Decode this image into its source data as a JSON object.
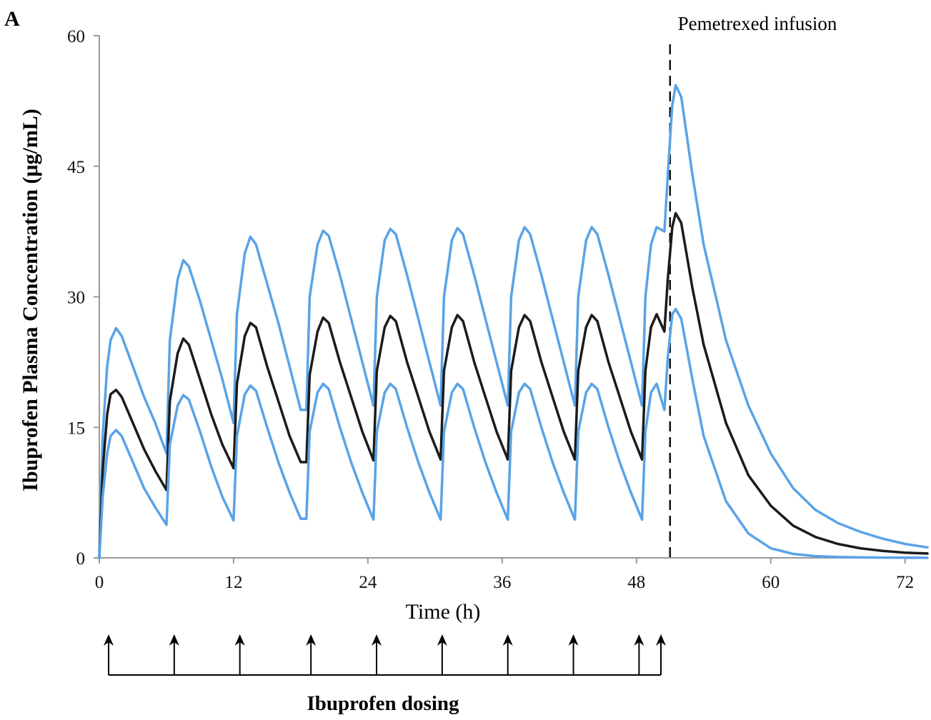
{
  "chart_data": {
    "type": "line",
    "panel_label": "A",
    "xlabel": "Time (h)",
    "ylabel": "Ibuprofen Plasma Concentration (μg/mL)",
    "xlim": [
      0,
      74
    ],
    "ylim": [
      0,
      60
    ],
    "x_ticks": [
      0,
      12,
      24,
      36,
      48,
      60,
      72
    ],
    "y_ticks": [
      0,
      15,
      30,
      45,
      60
    ],
    "grid": false,
    "annotations": [
      {
        "text": "Pemetrexed infusion",
        "x": 51
      }
    ],
    "vline_x": 51,
    "dosing": {
      "label": "Ibuprofen dosing",
      "times": [
        0,
        6,
        12,
        18.5,
        24.5,
        30.5,
        36.5,
        42.5,
        48.5,
        50.5
      ]
    },
    "series": [
      {
        "key": "upper",
        "color": "#5aa3e6",
        "x": [
          0,
          0.3,
          0.7,
          1.0,
          1.5,
          2,
          3,
          4,
          5,
          6,
          6.3,
          7,
          7.5,
          8,
          9,
          10,
          11,
          12,
          12.3,
          13,
          13.5,
          14,
          15,
          16,
          17,
          18,
          18.5,
          18.8,
          19.5,
          20,
          20.5,
          21.5,
          22.5,
          23.5,
          24.5,
          24.8,
          25.5,
          26,
          26.5,
          27.5,
          28.5,
          29.5,
          30.5,
          30.8,
          31.5,
          32,
          32.5,
          33.5,
          34.5,
          35.5,
          36.5,
          36.8,
          37.5,
          38,
          38.5,
          39.5,
          40.5,
          41.5,
          42.5,
          42.8,
          43.5,
          44,
          44.5,
          45.5,
          46.5,
          47.5,
          48.5,
          48.8,
          49.3,
          49.8,
          50.5,
          50.8,
          51.2,
          51.5,
          52,
          53,
          54,
          56,
          58,
          60,
          62,
          64,
          66,
          68,
          70,
          72,
          74
        ],
        "y": [
          0,
          14,
          22,
          25,
          26.4,
          25.5,
          22,
          18.5,
          15.5,
          12,
          25,
          32,
          34.2,
          33.5,
          29.5,
          25,
          20.5,
          15.5,
          28,
          35,
          36.9,
          36,
          31.5,
          27,
          22,
          17,
          17,
          30,
          36,
          37.6,
          37,
          32.5,
          27.5,
          22.5,
          17.5,
          30,
          36.5,
          37.8,
          37.2,
          32.5,
          27.5,
          22.5,
          17.5,
          30,
          36.5,
          37.9,
          37.2,
          32.5,
          27.5,
          22.5,
          17.5,
          30,
          36.5,
          38,
          37.2,
          32.5,
          27.5,
          22.5,
          17.5,
          30,
          36.5,
          38,
          37.2,
          32.5,
          27.5,
          22.5,
          17.5,
          30,
          36,
          38,
          37.5,
          44,
          52,
          54.3,
          53,
          44,
          36,
          25,
          17.5,
          12,
          8,
          5.5,
          4,
          3,
          2.2,
          1.6,
          1.2
        ]
      },
      {
        "key": "median",
        "color": "#1b1b1b",
        "x": [
          0,
          0.3,
          0.7,
          1.0,
          1.5,
          2,
          3,
          4,
          5,
          6,
          6.3,
          7,
          7.5,
          8,
          9,
          10,
          11,
          12,
          12.3,
          13,
          13.5,
          14,
          15,
          16,
          17,
          18,
          18.5,
          18.8,
          19.5,
          20,
          20.5,
          21.5,
          22.5,
          23.5,
          24.5,
          24.8,
          25.5,
          26,
          26.5,
          27.5,
          28.5,
          29.5,
          30.5,
          30.8,
          31.5,
          32,
          32.5,
          33.5,
          34.5,
          35.5,
          36.5,
          36.8,
          37.5,
          38,
          38.5,
          39.5,
          40.5,
          41.5,
          42.5,
          42.8,
          43.5,
          44,
          44.5,
          45.5,
          46.5,
          47.5,
          48.5,
          48.8,
          49.3,
          49.8,
          50.5,
          50.8,
          51.2,
          51.5,
          52,
          53,
          54,
          56,
          58,
          60,
          62,
          64,
          66,
          68,
          70,
          72,
          74
        ],
        "y": [
          0,
          10,
          16.5,
          18.8,
          19.3,
          18.5,
          15.5,
          12.5,
          10,
          7.8,
          18,
          23.5,
          25.2,
          24.5,
          20.5,
          16.5,
          13,
          10.3,
          20,
          25.5,
          27,
          26.5,
          22,
          18,
          14,
          11,
          11,
          21,
          26,
          27.6,
          27,
          22.5,
          18.5,
          14.5,
          11.2,
          21.5,
          26.5,
          27.8,
          27.2,
          22.5,
          18.5,
          14.5,
          11.3,
          21.5,
          26.5,
          27.9,
          27.2,
          22.5,
          18.5,
          14.5,
          11.3,
          21.5,
          26.5,
          27.9,
          27.2,
          22.5,
          18.5,
          14.5,
          11.3,
          21.5,
          26.5,
          27.9,
          27.2,
          22.5,
          18.5,
          14.5,
          11.3,
          21.5,
          26.5,
          28,
          26,
          32,
          38,
          39.6,
          38.5,
          31,
          24.5,
          15.5,
          9.5,
          6,
          3.7,
          2.4,
          1.6,
          1.1,
          0.8,
          0.6,
          0.5
        ]
      },
      {
        "key": "lower",
        "color": "#5aa3e6",
        "x": [
          0,
          0.3,
          0.7,
          1.0,
          1.5,
          2,
          3,
          4,
          5,
          6,
          6.3,
          7,
          7.5,
          8,
          9,
          10,
          11,
          12,
          12.3,
          13,
          13.5,
          14,
          15,
          16,
          17,
          18,
          18.5,
          18.8,
          19.5,
          20,
          20.5,
          21.5,
          22.5,
          23.5,
          24.5,
          24.8,
          25.5,
          26,
          26.5,
          27.5,
          28.5,
          29.5,
          30.5,
          30.8,
          31.5,
          32,
          32.5,
          33.5,
          34.5,
          35.5,
          36.5,
          36.8,
          37.5,
          38,
          38.5,
          39.5,
          40.5,
          41.5,
          42.5,
          42.8,
          43.5,
          44,
          44.5,
          45.5,
          46.5,
          47.5,
          48.5,
          48.8,
          49.3,
          49.8,
          50.5,
          50.8,
          51.2,
          51.5,
          52,
          53,
          54,
          56,
          58,
          60,
          62,
          64,
          66,
          68,
          70,
          72,
          74
        ],
        "y": [
          0,
          7,
          12,
          14,
          14.7,
          14,
          11,
          8,
          5.8,
          3.8,
          13,
          17.5,
          18.7,
          18.2,
          14.5,
          10.5,
          7,
          4.3,
          14,
          18.8,
          19.8,
          19.2,
          15,
          11,
          7.5,
          4.5,
          4.5,
          14.5,
          19,
          20,
          19.4,
          15,
          11,
          7.5,
          4.4,
          14.5,
          19,
          20,
          19.4,
          15,
          11,
          7.5,
          4.4,
          14.5,
          19,
          20,
          19.4,
          15,
          11,
          7.5,
          4.4,
          14.5,
          19,
          20,
          19.4,
          15,
          11,
          7.5,
          4.4,
          14.5,
          19,
          20,
          19.4,
          15,
          11,
          7.5,
          4.4,
          14.5,
          19,
          20,
          17,
          23,
          28,
          28.6,
          27.5,
          20.5,
          14,
          6.5,
          2.8,
          1.1,
          0.45,
          0.2,
          0.1,
          0.05,
          0.03,
          0.02,
          0.01
        ]
      }
    ]
  }
}
